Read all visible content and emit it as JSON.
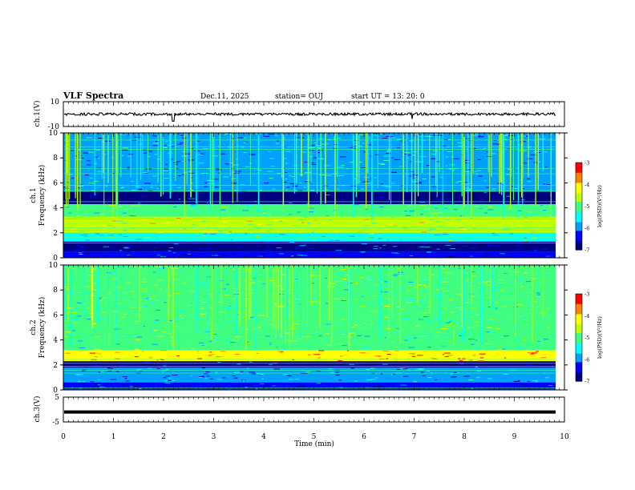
{
  "header": {
    "title": "VLF Spectra",
    "date": "Dec.11, 2025",
    "station": "station= OUJ",
    "start_ut": "start  UT  =   13: 20: 0"
  },
  "chart_data": [
    {
      "type": "line",
      "name": "ch1-waveform",
      "ylabel": "ch.1(V)",
      "ylim": [
        -10,
        10
      ],
      "y_ticks": [
        "10",
        "-10"
      ],
      "baseline_value": 0,
      "description_values": [
        0
      ]
    },
    {
      "type": "heatmap",
      "name": "ch1-spectrogram",
      "ylabel": "ch.1\nFrequency  (kHz)",
      "ylabel_line1": "ch.1",
      "ylabel_line2": "Frequency  (kHz)",
      "ylim": [
        0,
        10
      ],
      "y_ticks": [
        "0",
        "2",
        "4",
        "6",
        "8",
        "10"
      ],
      "bands": [
        {
          "from": 0,
          "to": 0.5,
          "level": -6.3
        },
        {
          "from": 0.5,
          "to": 1.3,
          "level": -6.6
        },
        {
          "from": 1.3,
          "to": 2.0,
          "level": -5.3
        },
        {
          "from": 2.0,
          "to": 3.3,
          "level": -4.6
        },
        {
          "from": 3.3,
          "to": 4.3,
          "level": -5.2
        },
        {
          "from": 4.3,
          "to": 5.3,
          "level": -6.8
        },
        {
          "from": 5.3,
          "to": 10.0,
          "level": -5.8
        }
      ]
    },
    {
      "type": "heatmap",
      "name": "ch2-spectrogram",
      "ylabel_line1": "ch.2",
      "ylabel_line2": "Frequency  (kHz)",
      "ylim": [
        0,
        10
      ],
      "y_ticks": [
        "0",
        "2",
        "4",
        "6",
        "8",
        "10"
      ],
      "bands": [
        {
          "from": 0,
          "to": 0.6,
          "level": -6.5
        },
        {
          "from": 0.6,
          "to": 1.8,
          "level": -5.9
        },
        {
          "from": 1.8,
          "to": 2.3,
          "level": -6.7
        },
        {
          "from": 2.3,
          "to": 3.2,
          "level": -3.9
        },
        {
          "from": 3.2,
          "to": 4.4,
          "level": -5.1
        },
        {
          "from": 4.4,
          "to": 10.0,
          "level": -5.0
        }
      ]
    },
    {
      "type": "line",
      "name": "ch3-waveform",
      "ylabel": "ch.3(V)",
      "ylim": [
        -5,
        5
      ],
      "y_ticks": [
        "5",
        "-5"
      ],
      "baseline_value": -1
    }
  ],
  "xaxis": {
    "label": "Time  (min)",
    "range": [
      0,
      10
    ],
    "ticks": [
      "0",
      "1",
      "2",
      "3",
      "4",
      "5",
      "6",
      "7",
      "8",
      "9",
      "10"
    ]
  },
  "colorbar": {
    "label": "log(PSD)(V²/Hz)",
    "range": [
      -7,
      -3
    ],
    "ticks": [
      "-3",
      "-4",
      "-5",
      "-6",
      "-7"
    ],
    "colors": [
      "#000080",
      "#0000ff",
      "#00a0ff",
      "#00ffff",
      "#40ff80",
      "#c0ff00",
      "#ffff00",
      "#ff8000",
      "#ff0000",
      "#ffffff"
    ]
  }
}
